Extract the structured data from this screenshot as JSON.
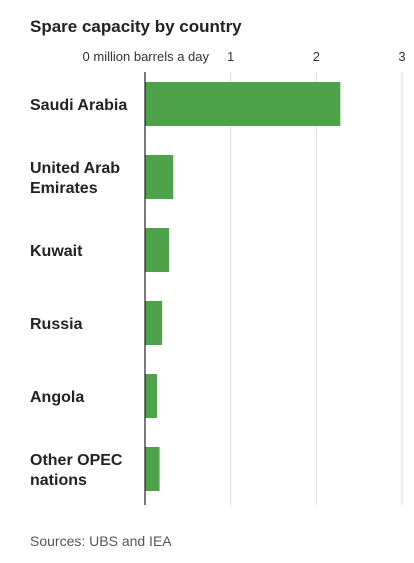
{
  "chart_data": {
    "type": "bar",
    "orientation": "horizontal",
    "title": "Spare capacity by country",
    "unit_label": "million barrels a day",
    "xlim": [
      0,
      3
    ],
    "ticks": [
      0,
      1,
      2,
      3
    ],
    "tick_labels": [
      "0 million barrels a day",
      "1",
      "2",
      "3"
    ],
    "categories": [
      [
        "Saudi Arabia"
      ],
      [
        "United Arab",
        "Emirates"
      ],
      [
        "Kuwait"
      ],
      [
        "Russia"
      ],
      [
        "Angola"
      ],
      [
        "Other OPEC",
        "nations"
      ]
    ],
    "values": [
      2.28,
      0.33,
      0.28,
      0.2,
      0.14,
      0.17
    ],
    "bar_color": "#4ea24a",
    "grid": true,
    "source": "Sources: UBS and IEA"
  }
}
